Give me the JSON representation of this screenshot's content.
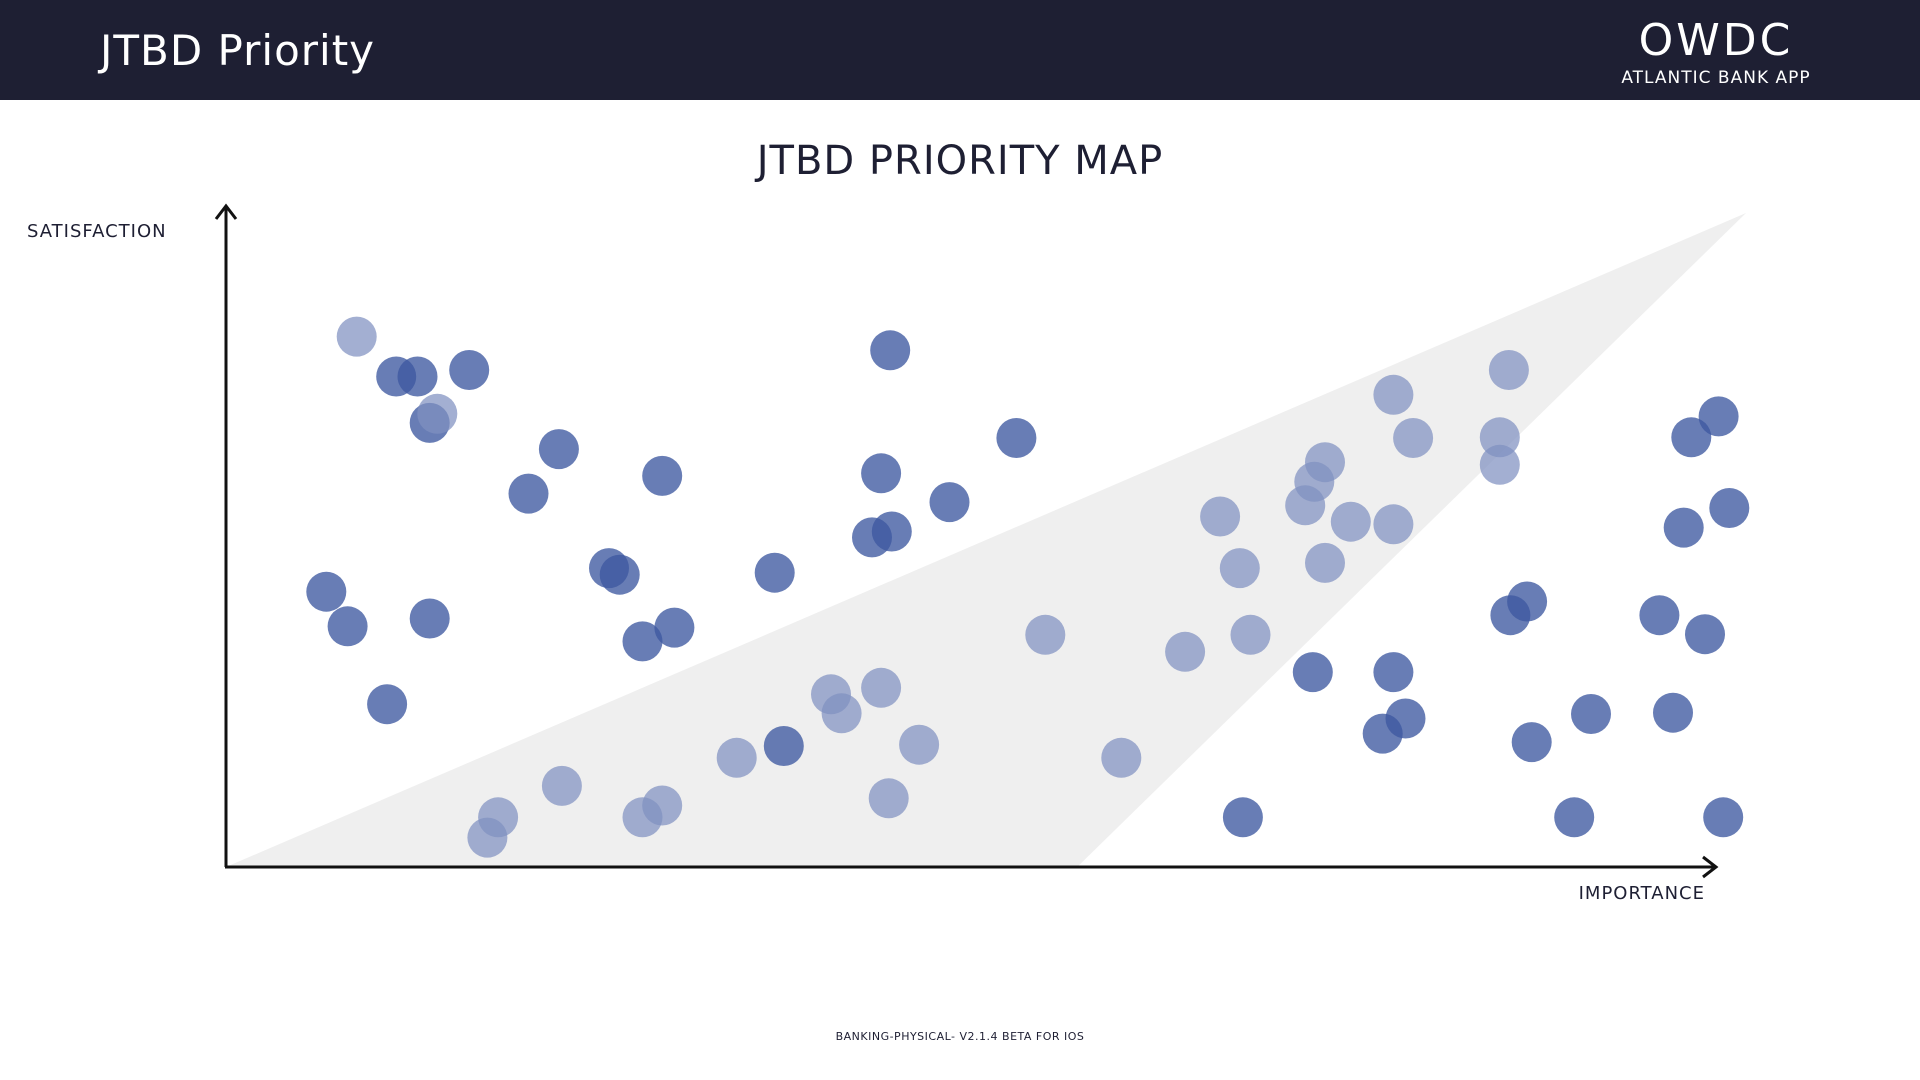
{
  "header": {
    "title": "JTBD Priority",
    "brand": "OWDC",
    "brand_subtitle": "ATLANTIC BANK APP"
  },
  "footer": {
    "text": "BANKING-PHYSICAL- V2.1.4 BETA FOR IOS"
  },
  "colors": {
    "header_bg": "#1e1f33",
    "dot_dark": "#3d58a0",
    "dot_light": "#7f90c1",
    "zone": "#efefef"
  },
  "chart_data": {
    "type": "scatter",
    "title": "JTBD PRIORITY MAP",
    "xlabel": "IMPORTANCE",
    "ylabel": "SATISFACTION",
    "xlim": [
      0,
      100
    ],
    "ylim": [
      0,
      100
    ],
    "grid": false,
    "tick_labels": "none",
    "shaded_zone": [
      [
        0,
        0
      ],
      [
        100,
        100
      ],
      [
        56,
        0
      ]
    ],
    "series": [
      {
        "shade": "dark",
        "points": [
          [
            6.6,
            42.1
          ],
          [
            8.0,
            36.8
          ],
          [
            10.6,
            24.9
          ],
          [
            11.2,
            75.0
          ],
          [
            12.6,
            75.0
          ],
          [
            13.4,
            67.9
          ],
          [
            13.4,
            38.0
          ],
          [
            16.0,
            76.0
          ],
          [
            19.9,
            57.1
          ],
          [
            21.9,
            63.9
          ],
          [
            25.2,
            45.7
          ],
          [
            25.9,
            44.7
          ],
          [
            27.4,
            34.5
          ],
          [
            28.7,
            59.8
          ],
          [
            29.5,
            36.6
          ],
          [
            36.1,
            45.0
          ],
          [
            36.7,
            18.5
          ],
          [
            42.5,
            50.4
          ],
          [
            43.1,
            60.2
          ],
          [
            43.7,
            79.0
          ],
          [
            43.8,
            51.3
          ],
          [
            47.6,
            55.8
          ],
          [
            52.0,
            65.6
          ],
          [
            66.9,
            7.6
          ],
          [
            71.5,
            29.8
          ],
          [
            76.1,
            20.4
          ],
          [
            76.8,
            29.8
          ],
          [
            77.6,
            22.7
          ],
          [
            84.5,
            38.5
          ],
          [
            85.6,
            40.6
          ],
          [
            85.9,
            19.1
          ],
          [
            88.7,
            7.6
          ],
          [
            89.8,
            23.4
          ],
          [
            94.3,
            38.5
          ],
          [
            95.2,
            23.6
          ],
          [
            95.9,
            51.9
          ],
          [
            96.4,
            65.7
          ],
          [
            97.3,
            35.6
          ],
          [
            98.2,
            68.9
          ],
          [
            98.5,
            7.6
          ],
          [
            98.9,
            54.9
          ]
        ]
      },
      {
        "shade": "light",
        "points": [
          [
            8.6,
            81.1
          ],
          [
            13.9,
            69.3
          ],
          [
            17.2,
            4.5
          ],
          [
            17.9,
            7.6
          ],
          [
            22.1,
            12.4
          ],
          [
            27.4,
            7.6
          ],
          [
            28.7,
            9.4
          ],
          [
            33.6,
            16.7
          ],
          [
            39.8,
            26.4
          ],
          [
            40.5,
            23.5
          ],
          [
            43.1,
            27.4
          ],
          [
            43.6,
            10.5
          ],
          [
            45.6,
            18.7
          ],
          [
            53.9,
            35.5
          ],
          [
            58.9,
            16.7
          ],
          [
            63.1,
            32.9
          ],
          [
            65.4,
            53.6
          ],
          [
            66.7,
            45.7
          ],
          [
            67.4,
            35.5
          ],
          [
            71.0,
            55.3
          ],
          [
            71.6,
            58.9
          ],
          [
            72.3,
            46.5
          ],
          [
            72.3,
            61.9
          ],
          [
            74.0,
            52.8
          ],
          [
            76.8,
            52.4
          ],
          [
            76.8,
            72.2
          ],
          [
            78.1,
            65.6
          ],
          [
            83.8,
            61.5
          ],
          [
            83.8,
            65.7
          ],
          [
            84.4,
            76.0
          ]
        ]
      }
    ]
  }
}
